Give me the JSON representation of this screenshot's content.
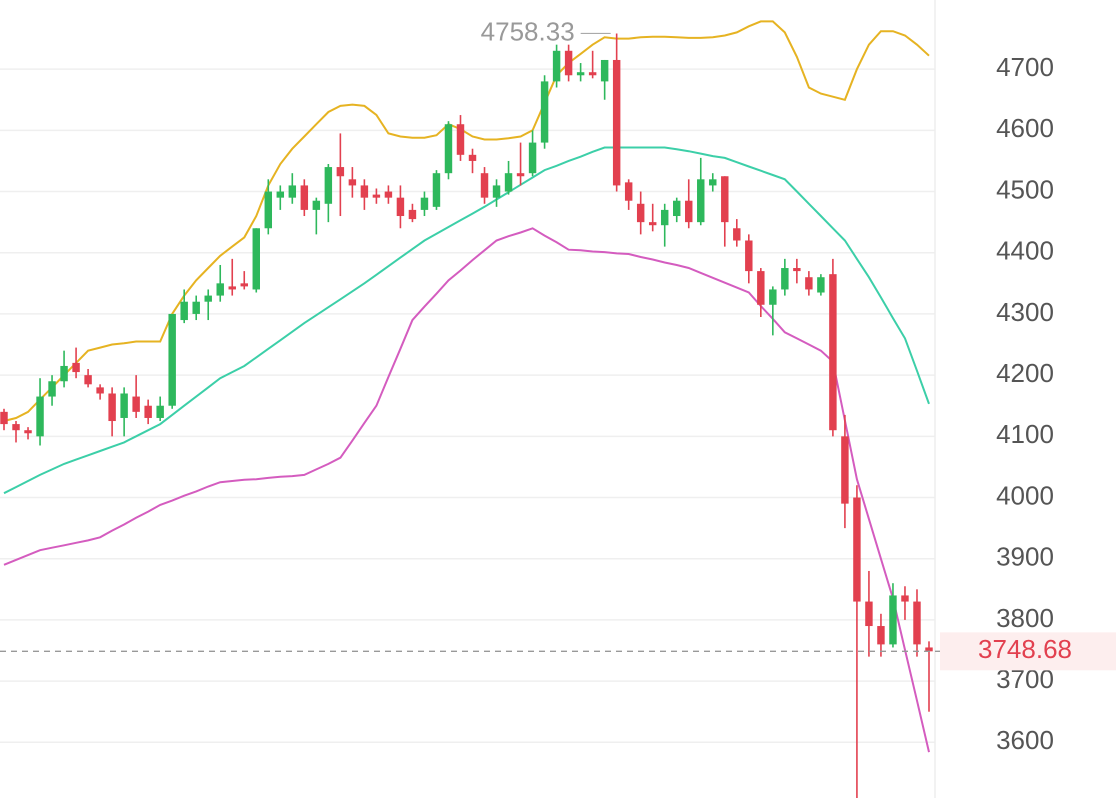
{
  "chart_data": {
    "type": "candlestick",
    "up_color": "#2eb85c",
    "down_color": "#e2404f",
    "open": [
      4140,
      4120,
      4110,
      4100,
      4165,
      4190,
      4220,
      4200,
      4180,
      4170,
      4130,
      4165,
      4150,
      4130,
      4150,
      4290,
      4300,
      4320,
      4330,
      4345,
      4350,
      4340,
      4440,
      4490,
      4490,
      4510,
      4470,
      4480,
      4540,
      4520,
      4510,
      4495,
      4500,
      4490,
      4470,
      4470,
      4475,
      4530,
      4610,
      4560,
      4530,
      4490,
      4500,
      4530,
      4530,
      4580,
      4680,
      4730,
      4690,
      4695,
      4680,
      4715,
      4515,
      4480,
      4450,
      4445,
      4460,
      4485,
      4450,
      4510,
      4525,
      4440,
      4420,
      4370,
      4315,
      4340,
      4375,
      4360,
      4335,
      4365,
      4100,
      4000,
      3830,
      3790,
      3760,
      3840,
      3830,
      3755
    ],
    "high": [
      4145,
      4125,
      4115,
      4195,
      4200,
      4240,
      4245,
      4210,
      4185,
      4180,
      4180,
      4200,
      4160,
      4165,
      4300,
      4340,
      4330,
      4340,
      4380,
      4390,
      4370,
      4440,
      4520,
      4510,
      4530,
      4520,
      4490,
      4545,
      4595,
      4540,
      4520,
      4505,
      4510,
      4510,
      4480,
      4500,
      4535,
      4615,
      4625,
      4570,
      4540,
      4520,
      4550,
      4580,
      4600,
      4690,
      4740,
      4740,
      4710,
      4730,
      4715,
      4758.33,
      4520,
      4500,
      4480,
      4480,
      4490,
      4520,
      4555,
      4530,
      4525,
      4455,
      4430,
      4375,
      4345,
      4390,
      4390,
      4370,
      4365,
      4390,
      4135,
      4020,
      3880,
      3810,
      3860,
      3855,
      3850,
      3765
    ],
    "low": [
      4110,
      4090,
      4095,
      4085,
      4150,
      4180,
      4195,
      4180,
      4160,
      4100,
      4100,
      4130,
      4120,
      4125,
      4145,
      4285,
      4290,
      4290,
      4320,
      4330,
      4340,
      4335,
      4430,
      4470,
      4480,
      4460,
      4430,
      4450,
      4460,
      4490,
      4470,
      4480,
      4480,
      4440,
      4450,
      4460,
      4470,
      4520,
      4550,
      4530,
      4480,
      4475,
      4495,
      4510,
      4525,
      4570,
      4670,
      4680,
      4680,
      4685,
      4650,
      4500,
      4470,
      4430,
      4435,
      4410,
      4450,
      4440,
      4445,
      4500,
      4410,
      4410,
      4350,
      4295,
      4265,
      4330,
      4350,
      4330,
      4330,
      4100,
      3950,
      3480,
      3740,
      3740,
      3755,
      3800,
      3740,
      3650
    ],
    "close": [
      4120,
      4110,
      4105,
      4165,
      4190,
      4215,
      4205,
      4185,
      4170,
      4125,
      4170,
      4140,
      4130,
      4150,
      4300,
      4320,
      4320,
      4330,
      4350,
      4340,
      4345,
      4440,
      4500,
      4500,
      4510,
      4470,
      4485,
      4540,
      4525,
      4510,
      4490,
      4490,
      4490,
      4460,
      4455,
      4490,
      4530,
      4610,
      4560,
      4550,
      4490,
      4510,
      4530,
      4525,
      4580,
      4680,
      4730,
      4690,
      4695,
      4690,
      4715,
      4510,
      4485,
      4450,
      4445,
      4470,
      4485,
      4450,
      4520,
      4520,
      4450,
      4420,
      4370,
      4315,
      4340,
      4375,
      4370,
      4340,
      4360,
      4110,
      3990,
      3830,
      3790,
      3760,
      3840,
      3830,
      3760,
      3748.68
    ],
    "bands": [
      {
        "color": "#e6b322",
        "values": [
          4125,
          4130,
          4140,
          4160,
          4180,
          4200,
          4220,
          4240,
          4245,
          4250,
          4252,
          4255,
          4255,
          4255,
          4300,
          4330,
          4355,
          4375,
          4395,
          4410,
          4425,
          4460,
          4510,
          4545,
          4570,
          4590,
          4610,
          4630,
          4640,
          4642,
          4640,
          4625,
          4595,
          4590,
          4588,
          4588,
          4592,
          4610,
          4602,
          4590,
          4585,
          4585,
          4587,
          4590,
          4600,
          4645,
          4690,
          4710,
          4725,
          4740,
          4752,
          4750,
          4750,
          4752,
          4753,
          4753,
          4752,
          4751,
          4751,
          4752,
          4755,
          4760,
          4770,
          4778,
          4778,
          4760,
          4720,
          4670,
          4660,
          4655,
          4650,
          4700,
          4740,
          4762,
          4762,
          4755,
          4740,
          4722
        ]
      },
      {
        "color": "#3ccfa8",
        "values": [
          4007,
          4017,
          4027,
          4037,
          4046,
          4055,
          4062,
          4069,
          4076,
          4083,
          4090,
          4100,
          4110,
          4120,
          4135,
          4150,
          4165,
          4180,
          4195,
          4205,
          4215,
          4229,
          4243,
          4257,
          4271,
          4285,
          4298,
          4311,
          4324,
          4337,
          4350,
          4364,
          4378,
          4392,
          4406,
          4420,
          4431,
          4442,
          4453,
          4464,
          4475,
          4487,
          4499,
          4511,
          4523,
          4535,
          4542,
          4550,
          4557,
          4565,
          4572,
          4572,
          4572,
          4572,
          4572,
          4572,
          4569,
          4566,
          4562,
          4558,
          4555,
          4548,
          4541,
          4534,
          4527,
          4520,
          4500,
          4480,
          4460,
          4440,
          4420,
          4390,
          4360,
          4327,
          4293,
          4260,
          4207,
          4153
        ]
      },
      {
        "color": "#d45cbf",
        "values": [
          3890,
          3898,
          3906,
          3914,
          3918,
          3922,
          3926,
          3930,
          3935,
          3946,
          3956,
          3967,
          3977,
          3988,
          3995,
          4003,
          4010,
          4018,
          4025,
          4027,
          4029,
          4030,
          4032,
          4034,
          4035,
          4037,
          4046,
          4055,
          4065,
          4093,
          4122,
          4150,
          4197,
          4243,
          4290,
          4312,
          4333,
          4355,
          4371,
          4388,
          4404,
          4420,
          4427,
          4433,
          4440,
          4428,
          4417,
          4405,
          4404,
          4402,
          4401,
          4399,
          4398,
          4393,
          4389,
          4384,
          4380,
          4375,
          4367,
          4359,
          4351,
          4343,
          4335,
          4313,
          4292,
          4270,
          4260,
          4250,
          4240,
          4222,
          4126,
          4030,
          3965,
          3900,
          3835,
          3751,
          3668,
          3584
        ]
      }
    ],
    "max_price": 4758.33,
    "last_price": 3748.68,
    "ylim": [
      3509,
      4813
    ],
    "yticks": [
      3600,
      3700,
      3800,
      3900,
      4000,
      4100,
      4200,
      4300,
      4400,
      4500,
      4600,
      4700
    ],
    "grid": true
  }
}
